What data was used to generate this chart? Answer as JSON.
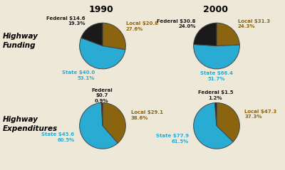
{
  "title_1990": "1990",
  "title_2000": "2000",
  "label_funding": "Highway\nFunding",
  "label_expenditures": "Highway\nExpenditures",
  "colors": {
    "local": "#8B6410",
    "state": "#29ABD4",
    "federal": "#1A1A1A"
  },
  "pies": {
    "funding_1990": {
      "values": [
        27.6,
        53.1,
        19.3
      ],
      "labels": [
        "Local $20.8\n27.6%",
        "State $40.0\n53.1%",
        "Federal $14.6\n19.3%"
      ],
      "label_colors": [
        "#8B6410",
        "#29ABD4",
        "#1A1A1A"
      ],
      "categories": [
        "local",
        "state",
        "federal"
      ],
      "startangle": 90
    },
    "funding_2000": {
      "values": [
        24.3,
        51.7,
        24.0
      ],
      "labels": [
        "Local $31.3\n24.3%",
        "State $66.4\n51.7%",
        "Federal $30.8\n24.0%"
      ],
      "label_colors": [
        "#8B6410",
        "#29ABD4",
        "#1A1A1A"
      ],
      "categories": [
        "local",
        "state",
        "federal"
      ],
      "startangle": 90
    },
    "expenditures_1990": {
      "values": [
        38.6,
        60.5,
        0.9
      ],
      "labels": [
        "Local $29.1\n38.6%",
        "State $45.6\n60.5%",
        "Federal\n$0.7\n0.9%"
      ],
      "label_colors": [
        "#8B6410",
        "#29ABD4",
        "#1A1A1A"
      ],
      "categories": [
        "local",
        "state",
        "federal"
      ],
      "startangle": 90
    },
    "expenditures_2000": {
      "values": [
        37.3,
        61.5,
        1.2
      ],
      "labels": [
        "Local $47.3\n37.3%",
        "State $77.9\n61.5%",
        "Federal $1.5\n1.2%"
      ],
      "label_colors": [
        "#8B6410",
        "#29ABD4",
        "#1A1A1A"
      ],
      "categories": [
        "local",
        "state",
        "federal"
      ],
      "startangle": 90
    }
  },
  "background_color": "#EDE8D8",
  "pie_edge_color": "#444444",
  "pie_linewidth": 0.7,
  "label_fontsize": 5.0,
  "title_fontsize": 9,
  "row_label_fontsize": 7.5
}
